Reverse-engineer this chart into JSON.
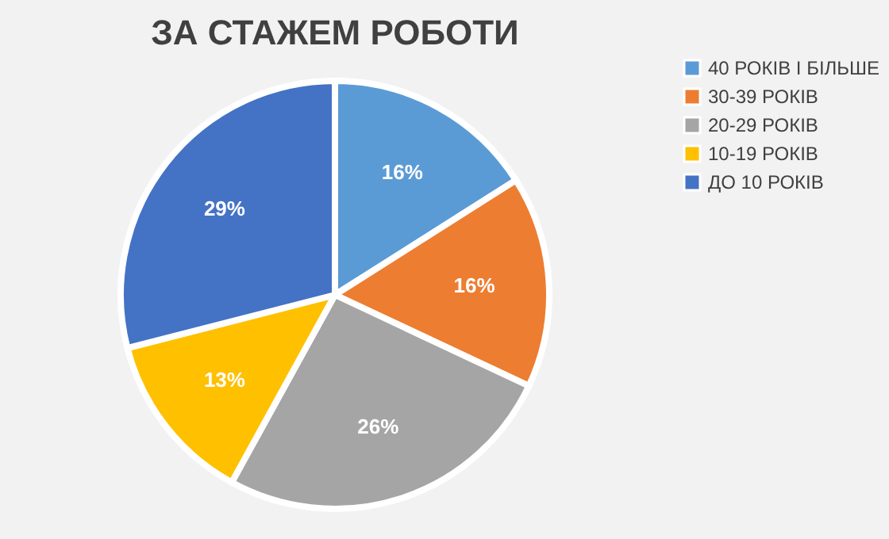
{
  "chart_data": {
    "type": "pie",
    "title": "ЗА СТАЖЕМ РОБОТИ",
    "categories": [
      "40 РОКІВ І БІЛЬШЕ",
      "30-39 РОКІВ",
      "20-29 РОКІВ",
      "10-19 РОКІВ",
      "ДО 10 РОКІВ"
    ],
    "values": [
      16,
      16,
      26,
      13,
      29
    ],
    "colors": [
      "#5b9bd5",
      "#ed7d31",
      "#a5a5a5",
      "#ffc000",
      "#4472c4"
    ],
    "value_labels": [
      "16%",
      "16%",
      "26%",
      "13%",
      "29%"
    ],
    "legend": "right"
  }
}
